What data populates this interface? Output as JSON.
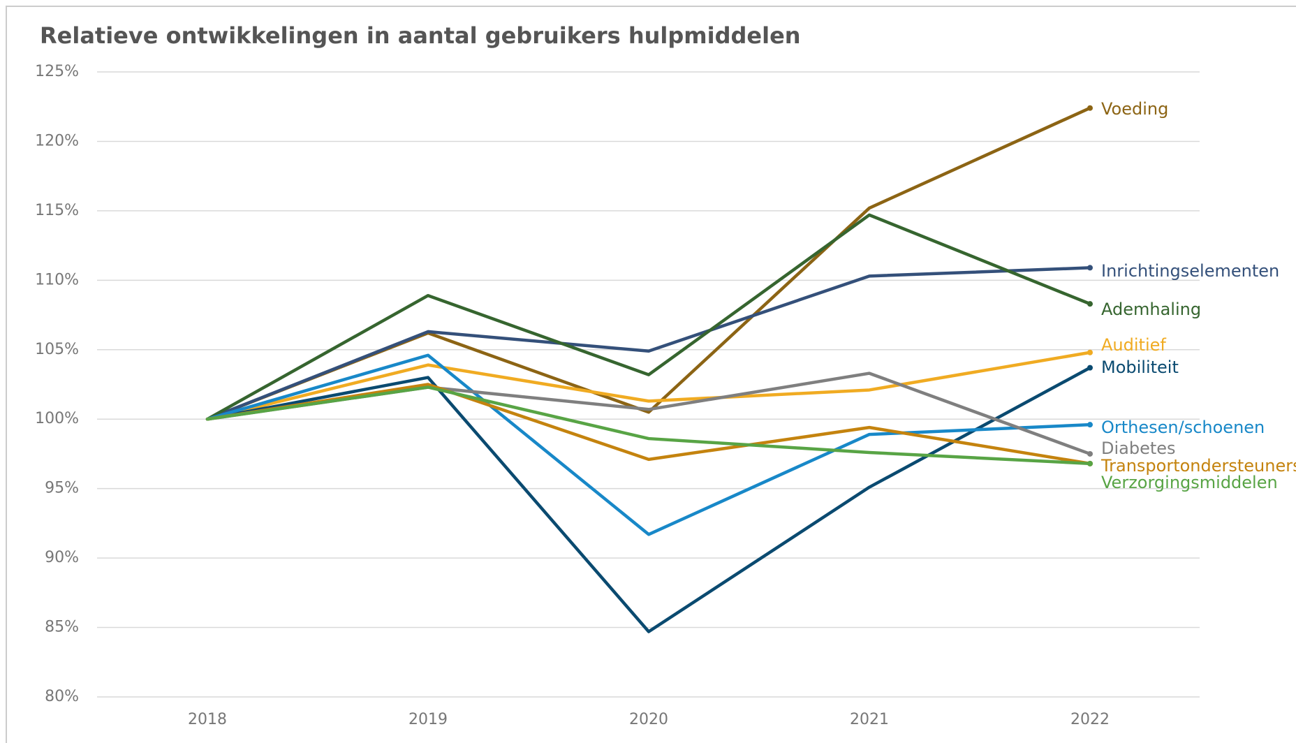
{
  "chart_data": {
    "type": "line",
    "title": "Relatieve ontwikkelingen in aantal gebruikers hulpmiddelen",
    "categories": [
      "2018",
      "2019",
      "2020",
      "2021",
      "2022"
    ],
    "ylim": [
      80,
      125
    ],
    "yticks": [
      {
        "value": 80,
        "label": "80%"
      },
      {
        "value": 85,
        "label": "85%"
      },
      {
        "value": 90,
        "label": "90%"
      },
      {
        "value": 95,
        "label": "95%"
      },
      {
        "value": 100,
        "label": "100%"
      },
      {
        "value": 105,
        "label": "105%"
      },
      {
        "value": 110,
        "label": "110%"
      },
      {
        "value": 115,
        "label": "115%"
      },
      {
        "value": 120,
        "label": "120%"
      },
      {
        "value": 125,
        "label": "125%"
      }
    ],
    "grid": true,
    "series": [
      {
        "name": "Voeding",
        "color": "#8c6414",
        "values": [
          100,
          106.2,
          100.5,
          115.2,
          122.4
        ]
      },
      {
        "name": "Inrichtingselementen",
        "color": "#34507a",
        "values": [
          100,
          106.3,
          104.9,
          110.3,
          110.9
        ]
      },
      {
        "name": "Ademhaling",
        "color": "#36652f",
        "values": [
          100,
          108.9,
          103.2,
          114.7,
          108.3
        ]
      },
      {
        "name": "Auditief",
        "color": "#f0ab22",
        "values": [
          100,
          103.9,
          101.3,
          102.1,
          104.8
        ]
      },
      {
        "name": "Mobiliteit",
        "color": "#0a4a70",
        "values": [
          100,
          103.0,
          84.7,
          95.1,
          103.7
        ]
      },
      {
        "name": "Orthesen/schoenen",
        "color": "#1888c8",
        "values": [
          100,
          104.6,
          91.7,
          98.9,
          99.6
        ]
      },
      {
        "name": "Diabetes",
        "color": "#7f7f7f",
        "values": [
          100,
          102.3,
          100.7,
          103.3,
          97.5
        ]
      },
      {
        "name": "Transportondersteuners",
        "color": "#c4830e",
        "values": [
          100,
          102.5,
          97.1,
          99.4,
          96.8
        ]
      },
      {
        "name": "Verzorgingsmiddelen",
        "color": "#58a445",
        "values": [
          100,
          102.3,
          98.6,
          97.6,
          96.8
        ]
      }
    ]
  }
}
